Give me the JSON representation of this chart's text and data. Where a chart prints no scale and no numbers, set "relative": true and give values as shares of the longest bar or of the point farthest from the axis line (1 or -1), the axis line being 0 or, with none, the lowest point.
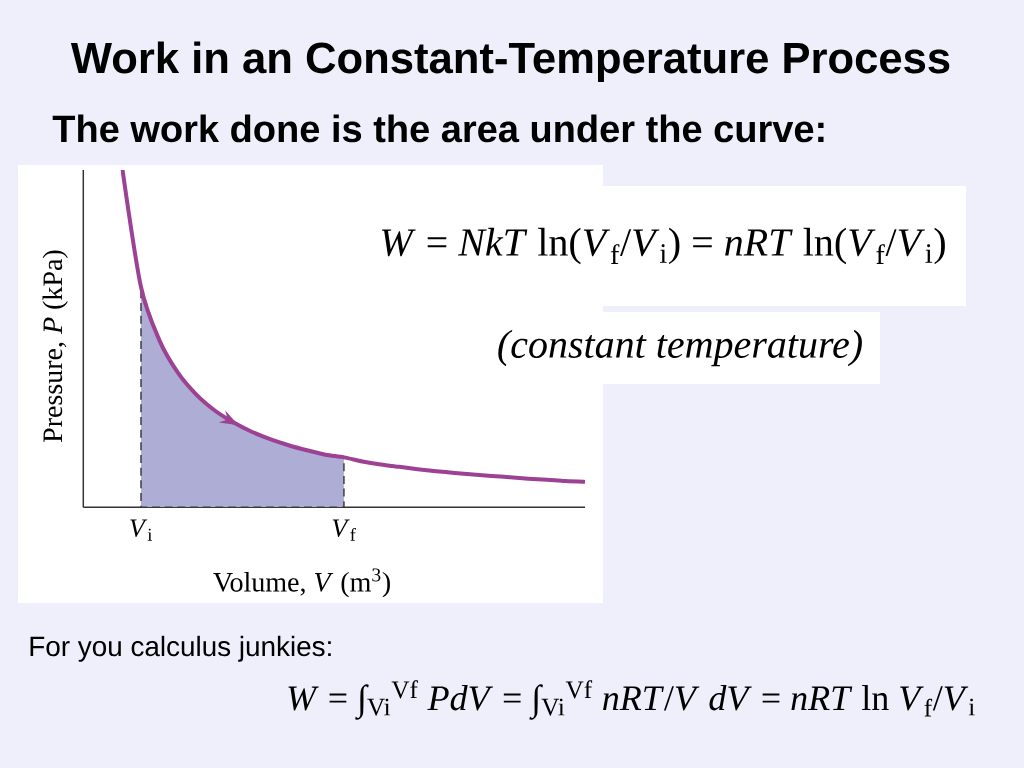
{
  "chart_data": {
    "type": "line",
    "title": "Work in an Constant-Temperature Process",
    "subtitle": "The work done is the area under the curve:",
    "xlabel": "Volume, *V* (m$^{3}$)",
    "ylabel": "Pressure, *P* (kPa)",
    "relative": true,
    "categories": [
      null,
      "*V*$_{i}$",
      null,
      null,
      null,
      null,
      null,
      null,
      null,
      null,
      null,
      null,
      "*V*$_{f}$",
      null,
      null,
      null,
      null,
      null,
      null,
      null,
      null,
      null,
      null,
      null,
      null,
      null
    ],
    "series": [
      {
        "type": "area",
        "color": "#adadd6",
        "line_style": "dashed",
        "values": [
          null,
          0.653,
          0.495,
          0.399,
          0.334,
          0.287,
          0.252,
          0.224,
          0.202,
          0.184,
          0.169,
          0.156,
          0.148,
          null,
          null,
          null,
          null,
          null,
          null,
          null,
          null,
          null,
          null,
          null,
          null,
          null
        ]
      },
      {
        "color": "#9c4193",
        "values": [
          1.0,
          0.653,
          0.495,
          0.399,
          0.334,
          0.287,
          0.252,
          0.224,
          0.202,
          0.184,
          0.169,
          0.156,
          0.148,
          0.136,
          0.127,
          0.12,
          0.113,
          0.107,
          0.102,
          0.097,
          0.093,
          0.089,
          0.085,
          0.082,
          0.078,
          0.076
        ]
      }
    ],
    "annotations": [
      "*W* = *NkT* ln(*V*$_{f}$/*V*$_{i}$) = *nRT* ln(*V*$_{f}$/*V*$_{i}$)",
      "(constant temperature)",
      "For you calculus junkies:",
      "*W* = ∫$_{Vi}$$^{Vf}$ *PdV* = ∫$_{Vi}$$^{Vf}$ *nRT*/*V* *dV* = *nRT* ln *V*$_{f}$/*V*$_{i}$"
    ]
  }
}
